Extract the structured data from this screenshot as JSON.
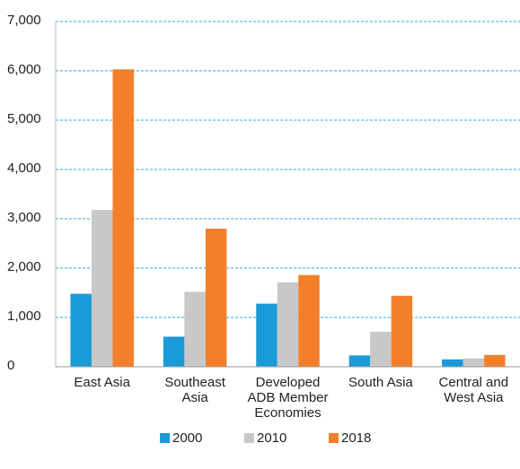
{
  "chart_data": {
    "type": "bar",
    "categories": [
      "East Asia",
      "Southeast Asia",
      "Developed ADB Member Economies",
      "South Asia",
      "Central and West Asia"
    ],
    "series": [
      {
        "name": "2000",
        "color": "#1a9ad6",
        "values": [
          1480,
          610,
          1280,
          230,
          150
        ]
      },
      {
        "name": "2010",
        "color": "#c8c8c8",
        "values": [
          3180,
          1520,
          1710,
          710,
          170
        ]
      },
      {
        "name": "2018",
        "color": "#f37f2a",
        "values": [
          6030,
          2800,
          1860,
          1440,
          240
        ]
      }
    ],
    "ylim": [
      0,
      7000
    ],
    "yticks": [
      0,
      {
        "value": 1000,
        "label": "1,000"
      },
      {
        "value": 2000,
        "label": "2,000"
      },
      {
        "value": 3000,
        "label": "3,000"
      },
      {
        "value": 4000,
        "label": "4,000"
      },
      {
        "value": 5000,
        "label": "5,000"
      },
      {
        "value": 6000,
        "label": "6,000"
      },
      {
        "value": 7000,
        "label": "7,000"
      }
    ],
    "grid": true,
    "legend": "bottom"
  }
}
